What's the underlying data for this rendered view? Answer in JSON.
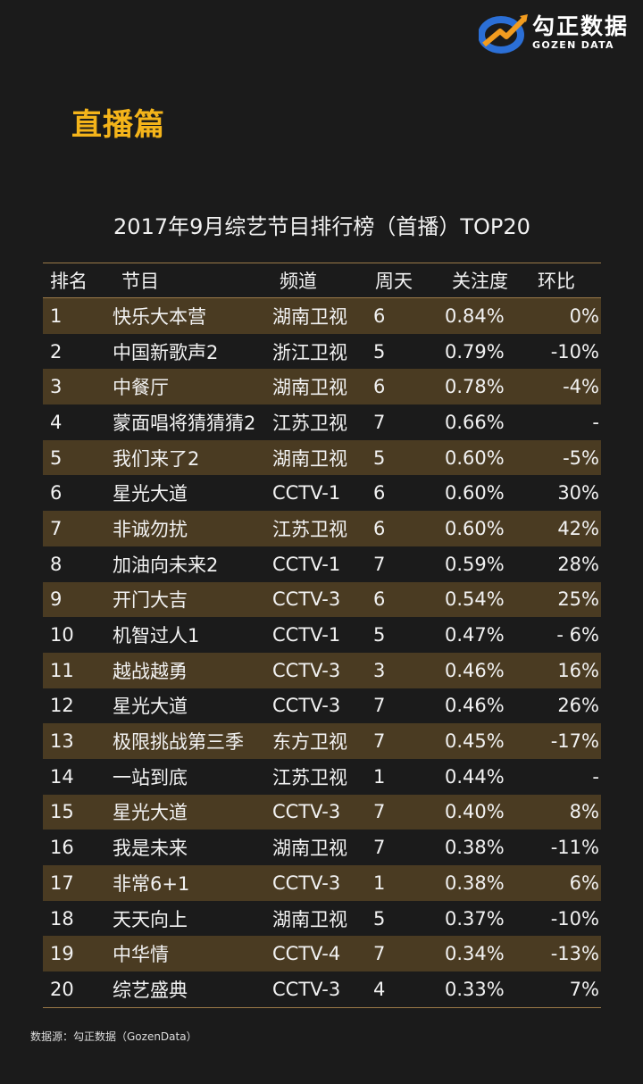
{
  "brand": {
    "cn": "勾正数据",
    "en": "GOZEN DATA",
    "icon": "gozen-logo-icon",
    "colors": {
      "blue": "#2b6fd6",
      "orange": "#f29c1f"
    }
  },
  "section_heading": "直播篇",
  "colors": {
    "accent": "#f4b41a",
    "row_band": "#4a3b22",
    "rule": "#9b7a48",
    "background": "#1b1b1b"
  },
  "chart_data": {
    "type": "table",
    "title": "2017年9月综艺节目排行榜（首播）TOP20",
    "columns": [
      "排名",
      "节目",
      "频道",
      "周天",
      "关注度",
      "环比"
    ],
    "rows": [
      [
        "1",
        "快乐大本营",
        "湖南卫视",
        "6",
        "0.84%",
        "0%"
      ],
      [
        "2",
        "中国新歌声2",
        "浙江卫视",
        "5",
        "0.79%",
        "-10%"
      ],
      [
        "3",
        "中餐厅",
        "湖南卫视",
        "6",
        "0.78%",
        "-4%"
      ],
      [
        "4",
        "蒙面唱将猜猜猜2",
        "江苏卫视",
        "7",
        "0.66%",
        "-"
      ],
      [
        "5",
        "我们来了2",
        "湖南卫视",
        "5",
        "0.60%",
        "-5%"
      ],
      [
        "6",
        "星光大道",
        "CCTV-1",
        "6",
        "0.60%",
        "30%"
      ],
      [
        "7",
        "非诚勿扰",
        "江苏卫视",
        "6",
        "0.60%",
        "42%"
      ],
      [
        "8",
        "加油向未来2",
        "CCTV-1",
        "7",
        "0.59%",
        "28%"
      ],
      [
        "9",
        "开门大吉",
        "CCTV-3",
        "6",
        "0.54%",
        "25%"
      ],
      [
        "10",
        "机智过人1",
        "CCTV-1",
        "5",
        "0.47%",
        "- 6%"
      ],
      [
        "11",
        "越战越勇",
        "CCTV-3",
        "3",
        "0.46%",
        "16%"
      ],
      [
        "12",
        "星光大道",
        "CCTV-3",
        "7",
        "0.46%",
        "26%"
      ],
      [
        "13",
        "极限挑战第三季",
        "东方卫视",
        "7",
        "0.45%",
        "-17%"
      ],
      [
        "14",
        "一站到底",
        "江苏卫视",
        "1",
        "0.44%",
        "-"
      ],
      [
        "15",
        "星光大道",
        "CCTV-3",
        "7",
        "0.40%",
        "8%"
      ],
      [
        "16",
        "我是未来",
        "湖南卫视",
        "7",
        "0.38%",
        "-11%"
      ],
      [
        "17",
        "非常6+1",
        "CCTV-3",
        "1",
        "0.38%",
        "6%"
      ],
      [
        "18",
        "天天向上",
        "湖南卫视",
        "5",
        "0.37%",
        "-10%"
      ],
      [
        "19",
        "中华情",
        "CCTV-4",
        "7",
        "0.34%",
        "-13%"
      ],
      [
        "20",
        "综艺盛典",
        "CCTV-3",
        "4",
        "0.33%",
        "7%"
      ]
    ]
  },
  "source": "数据源：勾正数据（GozenData）"
}
